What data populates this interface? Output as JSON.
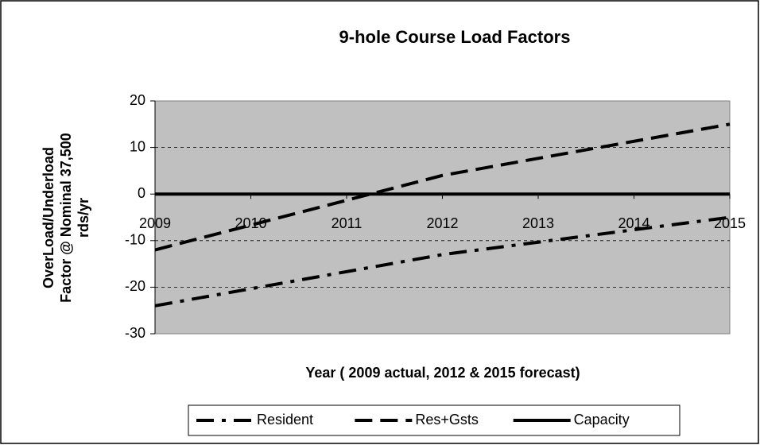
{
  "chart_data": {
    "type": "line",
    "title": "9-hole Course Load Factors",
    "xlabel": "Year ( 2009 actual, 2012 & 2015 forecast)",
    "ylabel": [
      "OverLoad/Underload",
      "Factor @ Nominal 37,500",
      "rds/yr"
    ],
    "x": [
      2009,
      2012,
      2015
    ],
    "series": [
      {
        "name": "Resident",
        "color": "#000000",
        "dash": "dash-dot",
        "values": [
          -24,
          -13,
          -5
        ]
      },
      {
        "name": "Res+Gsts",
        "color": "#000000",
        "dash": "dash",
        "values": [
          -12,
          4,
          15
        ]
      },
      {
        "name": "Capacity",
        "color": "#000000",
        "dash": "solid",
        "values": [
          0,
          0,
          0
        ]
      }
    ],
    "xlim": [
      2009,
      2015
    ],
    "xticks": [
      2009,
      2010,
      2011,
      2012,
      2013,
      2014,
      2015
    ],
    "ylim": [
      -30,
      20
    ],
    "yticks": [
      -30,
      -20,
      -10,
      0,
      10,
      20
    ],
    "grid": true,
    "legend": "bottom",
    "plot_background": "#c0c0c0"
  }
}
